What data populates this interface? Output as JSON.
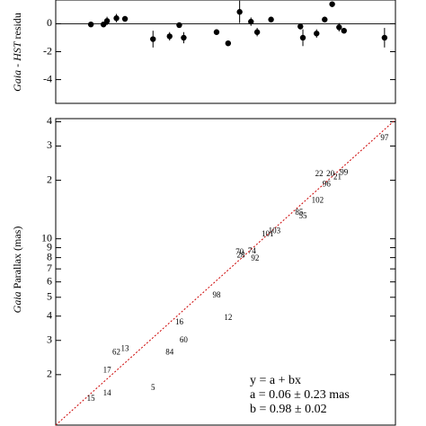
{
  "chart_data": [
    {
      "type": "scatter",
      "ylabel": [
        "Gaia",
        "-",
        "HST",
        "residu"
      ],
      "x": [
        1.6,
        1.83,
        1.9,
        2.1,
        2.3,
        3.1,
        3.7,
        4.1,
        4.3,
        6.1,
        6.9,
        7.8,
        8.8,
        9.4,
        10.9,
        14.9,
        15.3,
        17.7,
        19.3,
        20.9,
        22.5,
        23.7,
        36.5
      ],
      "values": [
        -0.05,
        -0.05,
        0.2,
        0.4,
        0.35,
        -1.1,
        -0.9,
        -0.1,
        -1.0,
        -0.6,
        -1.4,
        0.85,
        0.15,
        -0.6,
        0.3,
        -0.2,
        -1.0,
        -0.7,
        0.3,
        1.4,
        -0.25,
        -0.5,
        -1.0
      ],
      "errors": [
        0.1,
        0.2,
        0.3,
        0.3,
        0.2,
        0.6,
        0.3,
        0.1,
        0.4,
        0.2,
        0.2,
        0.8,
        0.3,
        0.3,
        0.2,
        0.2,
        0.6,
        0.3,
        0.2,
        0.2,
        0.3,
        0.2,
        0.7
      ],
      "color": "#000000",
      "xscale": "log",
      "xlim": [
        1.1,
        41
      ],
      "ylim": [
        -5.7,
        1.7
      ],
      "yticks": [
        -4,
        -2,
        0
      ]
    },
    {
      "type": "scatter",
      "ylabel": [
        "Gaia",
        "Parallax (mas)"
      ],
      "labels": [
        "97",
        "22",
        "20",
        "21",
        "99",
        "96",
        "102",
        "85",
        "55",
        "103",
        "101",
        "70",
        "74",
        "28",
        "92",
        "98",
        "16",
        "12",
        "60",
        "13",
        "62",
        "84",
        "17",
        "14",
        "5",
        "15"
      ],
      "x": [
        36.5,
        18.2,
        20.5,
        22.1,
        23.7,
        19.7,
        17.9,
        14.7,
        15.3,
        11.3,
        10.5,
        7.8,
        8.9,
        7.9,
        9.2,
        6.1,
        4.1,
        6.9,
        4.3,
        2.3,
        2.1,
        3.7,
        1.9,
        1.9,
        3.1,
        1.6
      ],
      "values": [
        32.8,
        21.5,
        21.5,
        20.7,
        21.8,
        19.0,
        15.7,
        13.6,
        13.0,
        10.9,
        10.5,
        8.5,
        8.6,
        8.2,
        7.9,
        5.1,
        3.7,
        3.9,
        3.0,
        2.7,
        2.6,
        2.6,
        2.1,
        1.6,
        1.7,
        1.5
      ],
      "color": "#000000",
      "line_color": "#cc0000",
      "xscale": "log",
      "xlim": [
        1.1,
        41
      ],
      "yscale": "log",
      "ylim": [
        1.1,
        41.5
      ],
      "yticks": [
        2,
        3,
        4,
        5,
        6,
        7,
        8,
        9,
        10,
        {
          "value": 20,
          "label": "2"
        },
        {
          "value": 30,
          "label": "3"
        },
        {
          "value": 40,
          "label": "4"
        }
      ],
      "annotations": [
        "y = a + bx",
        "a = 0.06 ± 0.23 mas",
        "b = 0.98 ± 0.02"
      ]
    }
  ]
}
